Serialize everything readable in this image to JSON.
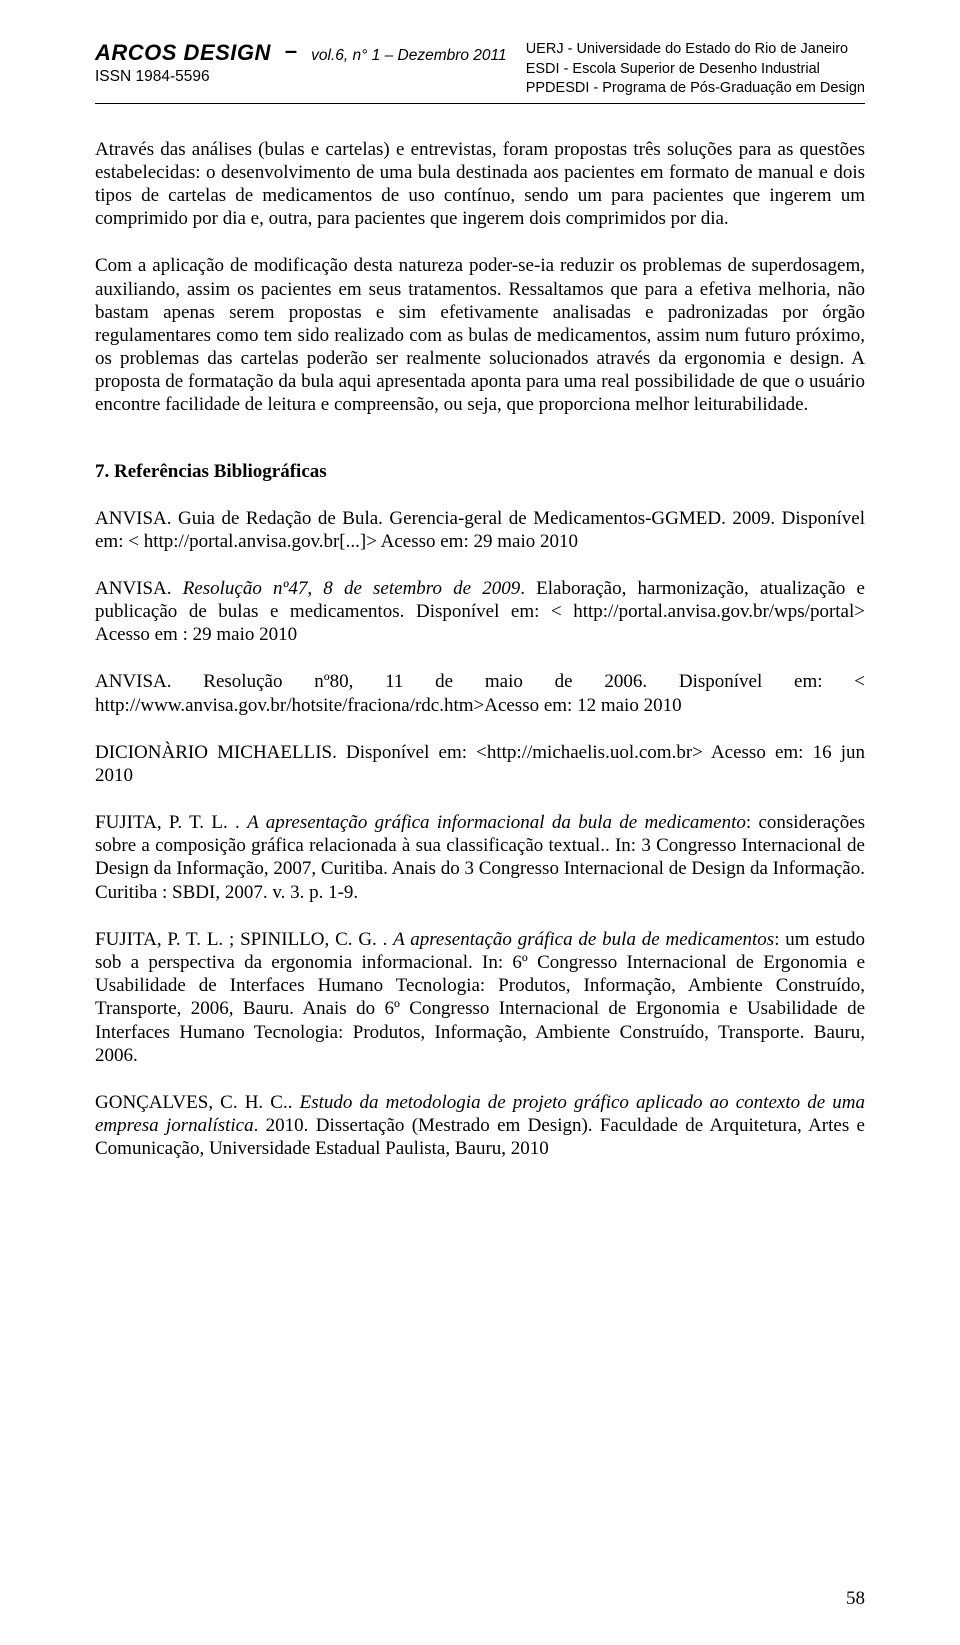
{
  "header": {
    "journal_title": "ARCOS DESIGN",
    "dash": "–",
    "issue": "vol.6, n° 1 – Dezembro 2011",
    "issn": "ISSN 1984-5596",
    "affil1": "UERJ - Universidade do Estado do Rio de Janeiro",
    "affil2": "ESDI - Escola Superior de Desenho Industrial",
    "affil3": "PPDESDI - Programa de Pós-Graduação em Design"
  },
  "body": {
    "p1": "Através das análises (bulas e cartelas) e entrevistas, foram propostas três soluções para as questões estabelecidas: o desenvolvimento de uma bula destinada aos pacientes em formato de manual e dois tipos de cartelas de medicamentos de uso contínuo, sendo um para pacientes que ingerem um comprimido por dia e, outra, para pacientes que ingerem dois comprimidos por dia.",
    "p2": "Com a aplicação de modificação desta natureza poder-se-ia reduzir os problemas de superdosagem, auxiliando, assim os pacientes em seus tratamentos. Ressaltamos que para a efetiva melhoria, não bastam apenas serem propostas e sim efetivamente analisadas e padronizadas por órgão regulamentares como tem sido realizado com as bulas de medicamentos, assim num futuro próximo, os problemas das cartelas poderão ser realmente solucionados através da ergonomia e design. A proposta de formatação da bula aqui apresentada aponta para uma real possibilidade de que o usuário encontre facilidade de leitura e compreensão, ou seja, que proporciona melhor leiturabilidade."
  },
  "refs_heading": "7. Referências Bibliográficas",
  "refs": {
    "r1": "ANVISA. Guia de Redação de Bula. Gerencia-geral de Medicamentos-GGMED. 2009. Disponível em: < http://portal.anvisa.gov.br[...]> Acesso em: 29 maio 2010",
    "r2_a": "ANVISA. ",
    "r2_i": "Resolução nº47, 8 de setembro de 2009",
    "r2_b": ". Elaboração, harmonização, atualização e publicação de bulas e medicamentos. Disponível em: < http://portal.anvisa.gov.br/wps/portal> Acesso em : 29 maio 2010",
    "r3": "ANVISA. Resolução nº80, 11 de maio de 2006. Disponível em: < http://www.anvisa.gov.br/hotsite/fraciona/rdc.htm>Acesso em: 12 maio 2010",
    "r4": "DICIONÀRIO MICHAELLIS. Disponível em: <http://michaelis.uol.com.br> Acesso em: 16 jun 2010",
    "r5_a": "FUJITA, P. T. L. . ",
    "r5_i": "A apresentação gráfica informacional da bula de medicamento",
    "r5_b": ": considerações sobre a composição gráfica relacionada à sua classificação textual.. In: 3 Congresso Internacional de Design da Informação, 2007, Curitiba. Anais do 3 Congresso Internacional de Design da Informação. Curitiba : SBDI, 2007. v. 3. p. 1-9.",
    "r6_a": "FUJITA, P. T. L. ; SPINILLO, C. G. . ",
    "r6_i": "A apresentação gráfica de bula de medicamentos",
    "r6_b": ": um estudo sob a perspectiva da ergonomia informacional. In: 6º Congresso Internacional de Ergonomia e Usabilidade de Interfaces Humano Tecnologia: Produtos, Informação, Ambiente Construído, Transporte, 2006, Bauru. Anais do 6º Congresso Internacional de Ergonomia e Usabilidade de Interfaces Humano Tecnologia: Produtos, Informação, Ambiente Construído, Transporte. Bauru, 2006.",
    "r7_a": "GONÇALVES, C. H. C.. ",
    "r7_i": "Estudo da metodologia de projeto gráfico aplicado ao contexto de uma empresa jornalística",
    "r7_b": ".  2010. Dissertação (Mestrado em Design). Faculdade de Arquitetura, Artes e Comunicação, Universidade Estadual Paulista, Bauru, 2010"
  },
  "page_number": "58"
}
